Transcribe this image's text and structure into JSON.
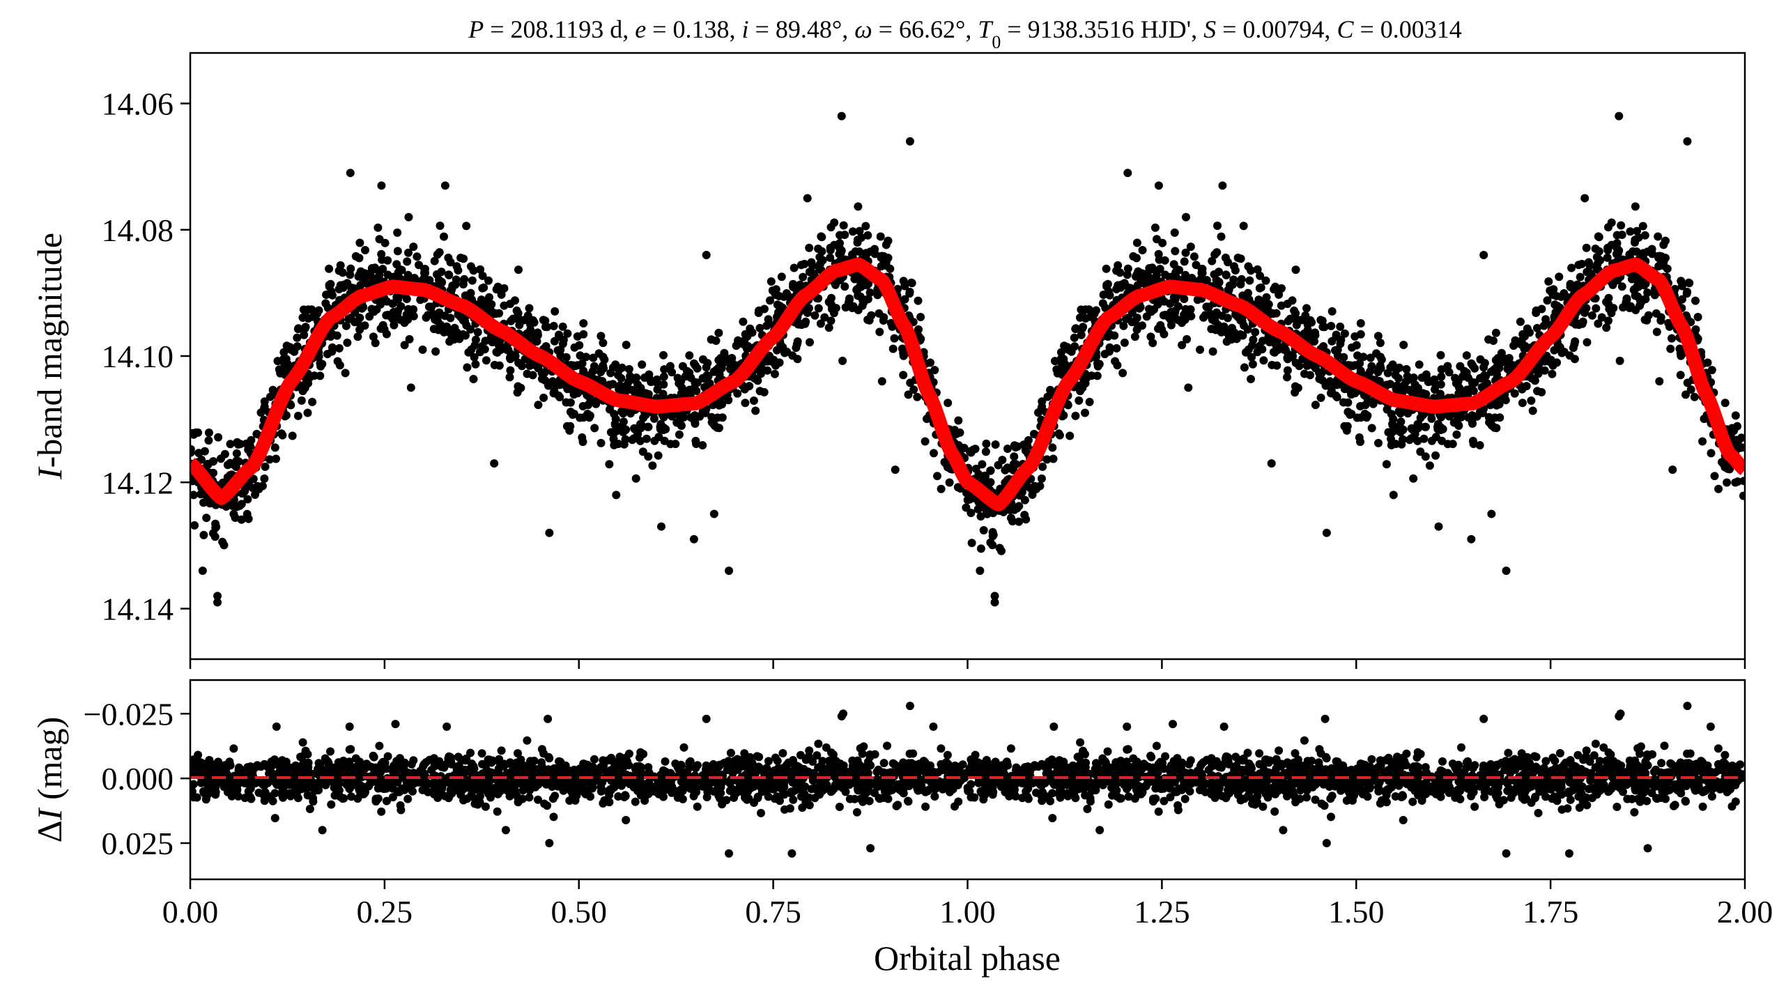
{
  "figure": {
    "title_parts": [
      {
        "t": "P",
        "i": true
      },
      {
        "t": " = 208.1193 d, "
      },
      {
        "t": "e",
        "i": true
      },
      {
        "t": " = 0.138, "
      },
      {
        "t": "i",
        "i": true
      },
      {
        "t": " = 89.48°, "
      },
      {
        "t": "ω",
        "i": true
      },
      {
        "t": " = 66.62°, "
      },
      {
        "t": "T",
        "i": true
      },
      {
        "t": "0",
        "sub": true
      },
      {
        "t": " = 9138.3516 HJD', "
      },
      {
        "t": "S",
        "i": true
      },
      {
        "t": " = 0.00794, "
      },
      {
        "t": "C",
        "i": true
      },
      {
        "t": " = 0.00314"
      }
    ],
    "colors": {
      "data": "#000000",
      "model": "#ff0000",
      "residual_zero": "#d62728",
      "frame": "#000000"
    }
  },
  "chart_data": [
    {
      "type": "scatter",
      "panel": "light-curve",
      "xlabel": "Orbital phase",
      "ylabel_parts": [
        {
          "t": "I",
          "i": true
        },
        {
          "t": "-band magnitude"
        }
      ],
      "xlim": [
        0.0,
        2.0
      ],
      "ylim": [
        14.148,
        14.052
      ],
      "y_inverted": true,
      "yticks": [
        14.06,
        14.08,
        14.1,
        14.12,
        14.14
      ],
      "ytick_labels": [
        "14.06",
        "14.08",
        "14.10",
        "14.12",
        "14.14"
      ],
      "xticks": [
        0.0,
        0.25,
        0.5,
        0.75,
        1.0,
        1.25,
        1.5,
        1.75,
        2.0
      ],
      "series": [
        {
          "kind": "model",
          "x": [
            0.0,
            0.04,
            0.08,
            0.13,
            0.18,
            0.22,
            0.26,
            0.3,
            0.35,
            0.4,
            0.45,
            0.5,
            0.55,
            0.6,
            0.65,
            0.7,
            0.75,
            0.79,
            0.83,
            0.86,
            0.89,
            0.92,
            0.95,
            0.98,
            1.0,
            1.04,
            1.08,
            1.13,
            1.18,
            1.22,
            1.26,
            1.3,
            1.35,
            1.4,
            1.45,
            1.5,
            1.55,
            1.6,
            1.65,
            1.7,
            1.75,
            1.79,
            1.83,
            1.86,
            1.89,
            1.92,
            1.95,
            1.98,
            2.0
          ],
          "y": [
            14.117,
            14.1225,
            14.1175,
            14.104,
            14.094,
            14.0905,
            14.089,
            14.0895,
            14.092,
            14.096,
            14.1,
            14.104,
            14.107,
            14.108,
            14.1075,
            14.104,
            14.097,
            14.0905,
            14.0865,
            14.0855,
            14.088,
            14.0955,
            14.106,
            14.1155,
            14.12,
            14.1235,
            14.1175,
            14.104,
            14.094,
            14.0905,
            14.089,
            14.0895,
            14.092,
            14.096,
            14.1,
            14.104,
            14.107,
            14.108,
            14.1075,
            14.104,
            14.097,
            14.0905,
            14.0865,
            14.0855,
            14.088,
            14.0955,
            14.106,
            14.1155,
            14.118
          ]
        },
        {
          "kind": "observations",
          "note": "about 2900 points per phase cycle, repeated over two cycles",
          "scatter_sigma": 0.0038,
          "outliers": [
            {
              "x": 0.016,
              "y": 14.134
            },
            {
              "x": 0.035,
              "y": 14.138
            },
            {
              "x": 0.035,
              "y": 14.139
            },
            {
              "x": 0.206,
              "y": 14.071
            },
            {
              "x": 0.246,
              "y": 14.073
            },
            {
              "x": 0.281,
              "y": 14.078
            },
            {
              "x": 0.284,
              "y": 14.105
            },
            {
              "x": 0.328,
              "y": 14.073
            },
            {
              "x": 0.391,
              "y": 14.117
            },
            {
              "x": 0.462,
              "y": 14.128
            },
            {
              "x": 0.548,
              "y": 14.122
            },
            {
              "x": 0.606,
              "y": 14.127
            },
            {
              "x": 0.648,
              "y": 14.129
            },
            {
              "x": 0.664,
              "y": 14.084
            },
            {
              "x": 0.674,
              "y": 14.125
            },
            {
              "x": 0.693,
              "y": 14.134
            },
            {
              "x": 0.794,
              "y": 14.075
            },
            {
              "x": 0.838,
              "y": 14.062
            },
            {
              "x": 0.89,
              "y": 14.104
            },
            {
              "x": 0.907,
              "y": 14.118
            },
            {
              "x": 0.926,
              "y": 14.066
            },
            {
              "x": 0.961,
              "y": 14.119
            },
            {
              "x": 1.016,
              "y": 14.134
            },
            {
              "x": 1.035,
              "y": 14.138
            },
            {
              "x": 1.035,
              "y": 14.139
            },
            {
              "x": 1.206,
              "y": 14.071
            },
            {
              "x": 1.246,
              "y": 14.073
            },
            {
              "x": 1.281,
              "y": 14.078
            },
            {
              "x": 1.284,
              "y": 14.105
            },
            {
              "x": 1.328,
              "y": 14.073
            },
            {
              "x": 1.391,
              "y": 14.117
            },
            {
              "x": 1.462,
              "y": 14.128
            },
            {
              "x": 1.548,
              "y": 14.122
            },
            {
              "x": 1.606,
              "y": 14.127
            },
            {
              "x": 1.648,
              "y": 14.129
            },
            {
              "x": 1.664,
              "y": 14.084
            },
            {
              "x": 1.674,
              "y": 14.125
            },
            {
              "x": 1.693,
              "y": 14.134
            },
            {
              "x": 1.794,
              "y": 14.075
            },
            {
              "x": 1.838,
              "y": 14.062
            },
            {
              "x": 1.89,
              "y": 14.104
            },
            {
              "x": 1.907,
              "y": 14.118
            },
            {
              "x": 1.926,
              "y": 14.066
            },
            {
              "x": 1.961,
              "y": 14.119
            }
          ]
        }
      ]
    },
    {
      "type": "scatter",
      "panel": "residuals",
      "xlabel": "Orbital phase",
      "ylabel_parts": [
        {
          "t": "Δ"
        },
        {
          "t": "I",
          "i": true
        },
        {
          "t": " (mag)"
        }
      ],
      "xlim": [
        0.0,
        2.0
      ],
      "ylim": [
        0.039,
        -0.038
      ],
      "y_inverted": true,
      "yticks": [
        -0.025,
        0.0,
        0.025
      ],
      "ytick_labels": [
        "−0.025",
        "0.000",
        "0.025"
      ],
      "xticks": [
        0.0,
        0.25,
        0.5,
        0.75,
        1.0,
        1.25,
        1.5,
        1.75,
        2.0
      ],
      "xtick_labels": [
        "0.00",
        "0.25",
        "0.50",
        "0.75",
        "1.00",
        "1.25",
        "1.50",
        "1.75",
        "2.00"
      ],
      "zero_line": 0.0,
      "series": [
        {
          "kind": "residuals",
          "scatter_sigma": 0.0045,
          "outliers": [
            {
              "x": 0.111,
              "y": -0.02
            },
            {
              "x": 0.17,
              "y": 0.02
            },
            {
              "x": 0.205,
              "y": -0.02
            },
            {
              "x": 0.264,
              "y": -0.021
            },
            {
              "x": 0.33,
              "y": -0.02
            },
            {
              "x": 0.406,
              "y": 0.02
            },
            {
              "x": 0.46,
              "y": -0.023
            },
            {
              "x": 0.462,
              "y": 0.025
            },
            {
              "x": 0.664,
              "y": -0.023
            },
            {
              "x": 0.693,
              "y": 0.029
            },
            {
              "x": 0.774,
              "y": 0.029
            },
            {
              "x": 0.838,
              "y": -0.024
            },
            {
              "x": 0.84,
              "y": -0.025
            },
            {
              "x": 0.875,
              "y": 0.027
            },
            {
              "x": 0.926,
              "y": -0.028
            },
            {
              "x": 0.956,
              "y": -0.02
            },
            {
              "x": 1.111,
              "y": -0.02
            },
            {
              "x": 1.17,
              "y": 0.02
            },
            {
              "x": 1.205,
              "y": -0.02
            },
            {
              "x": 1.264,
              "y": -0.021
            },
            {
              "x": 1.33,
              "y": -0.02
            },
            {
              "x": 1.406,
              "y": 0.02
            },
            {
              "x": 1.46,
              "y": -0.023
            },
            {
              "x": 1.462,
              "y": 0.025
            },
            {
              "x": 1.664,
              "y": -0.023
            },
            {
              "x": 1.693,
              "y": 0.029
            },
            {
              "x": 1.774,
              "y": 0.029
            },
            {
              "x": 1.838,
              "y": -0.024
            },
            {
              "x": 1.84,
              "y": -0.025
            },
            {
              "x": 1.875,
              "y": 0.027
            },
            {
              "x": 1.926,
              "y": -0.028
            },
            {
              "x": 1.956,
              "y": -0.02
            }
          ]
        }
      ]
    }
  ]
}
